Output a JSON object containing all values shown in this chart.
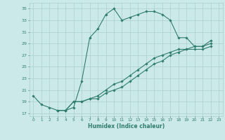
{
  "xlabel": "Humidex (Indice chaleur)",
  "bg_color": "#cce9e9",
  "line_color": "#2e7d6e",
  "grid_color": "#aacfcf",
  "xlim": [
    -0.5,
    23.5
  ],
  "ylim": [
    16.5,
    36
  ],
  "yticks": [
    17,
    19,
    21,
    23,
    25,
    27,
    29,
    31,
    33,
    35
  ],
  "xticks": [
    0,
    1,
    2,
    3,
    4,
    5,
    6,
    7,
    8,
    9,
    10,
    11,
    12,
    13,
    14,
    15,
    16,
    17,
    18,
    19,
    20,
    21,
    22,
    23
  ],
  "series1_x": [
    0,
    1,
    2,
    3,
    4,
    5,
    6,
    7,
    8,
    9,
    10,
    11,
    12,
    13,
    14,
    15,
    16,
    17,
    18,
    19,
    20,
    21,
    22
  ],
  "series1_y": [
    20,
    18.5,
    18,
    17.5,
    17.5,
    18,
    22.5,
    30,
    31.5,
    34,
    35,
    33,
    33.5,
    34,
    34.5,
    34.5,
    34,
    33,
    30,
    30,
    28.5,
    28.5,
    29.5
  ],
  "series2_x": [
    3,
    4,
    5,
    6,
    7,
    8,
    9,
    10,
    11,
    12,
    13,
    14,
    15,
    16,
    17,
    18,
    19,
    20,
    21,
    22
  ],
  "series2_y": [
    17.5,
    17.5,
    19,
    19,
    19.5,
    20,
    21,
    22,
    22.5,
    23.5,
    24.5,
    25.5,
    26.5,
    27,
    27.5,
    28,
    28,
    28.5,
    28.5,
    29
  ],
  "series3_x": [
    3,
    4,
    5,
    6,
    7,
    8,
    9,
    10,
    11,
    12,
    13,
    14,
    15,
    16,
    17,
    18,
    19,
    20,
    21,
    22
  ],
  "series3_y": [
    17.5,
    17.5,
    19,
    19,
    19.5,
    19.5,
    20.5,
    21,
    21.5,
    22.5,
    23.5,
    24.5,
    25.5,
    26,
    27,
    27.5,
    28,
    28,
    28,
    28.5
  ]
}
